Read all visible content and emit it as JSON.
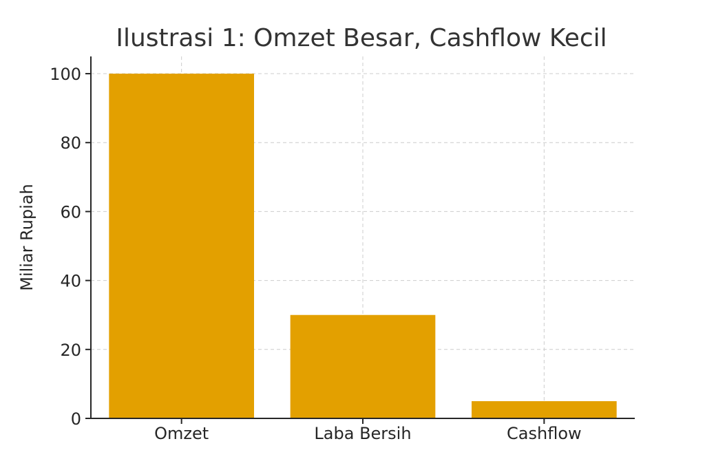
{
  "chart_data": {
    "type": "bar",
    "title": "Ilustrasi 1: Omzet Besar, Cashflow Kecil",
    "xlabel": "",
    "ylabel": "Miliar Rupiah",
    "categories": [
      "Omzet",
      "Laba Bersih",
      "Cashflow"
    ],
    "values": [
      100,
      30,
      5
    ],
    "ylim": [
      0,
      105
    ],
    "yticks": [
      0,
      20,
      40,
      60,
      80,
      100
    ],
    "grid": true,
    "bar_color": "#E3A000"
  }
}
